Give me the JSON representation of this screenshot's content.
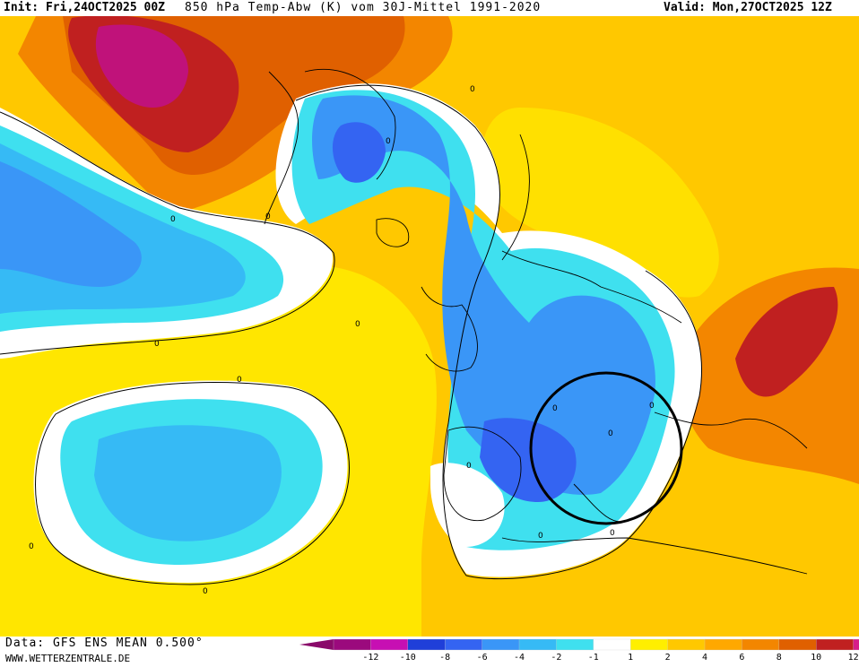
{
  "header": {
    "init_label": "Init: Fri,24OCT2025 00Z",
    "title": "850 hPa Temp-Abw (K) vom 30J-Mittel 1991-2020",
    "valid_label": "Valid: Mon,27OCT2025 12Z"
  },
  "footer": {
    "data_source": "Data: GFS ENS MEAN 0.500°",
    "website": "WWW.WETTERZENTRALE.DE"
  },
  "legend": {
    "tick_labels": [
      "-12",
      "-10",
      "-8",
      "-6",
      "-4",
      "-2",
      "-1",
      "1",
      "2",
      "4",
      "6",
      "8",
      "10",
      "12"
    ],
    "colors": [
      "#9b0a7d",
      "#c70fb3",
      "#1f3fd9",
      "#3464f2",
      "#3a96f7",
      "#36baf5",
      "#3fe0ef",
      "#ffffff",
      "#ffef00",
      "#ffc800",
      "#ffa800",
      "#f38600",
      "#e06000",
      "#c02020",
      "#d61e8a"
    ],
    "min_color": "#8a0a6a",
    "max_color": "#e0218f"
  },
  "map": {
    "contour_labels": [
      "0",
      "0",
      "0",
      "0",
      "0",
      "0",
      "0",
      "0",
      "0",
      "0",
      "0",
      "0",
      "0",
      "0",
      "0"
    ],
    "highlight": "black-circle"
  }
}
